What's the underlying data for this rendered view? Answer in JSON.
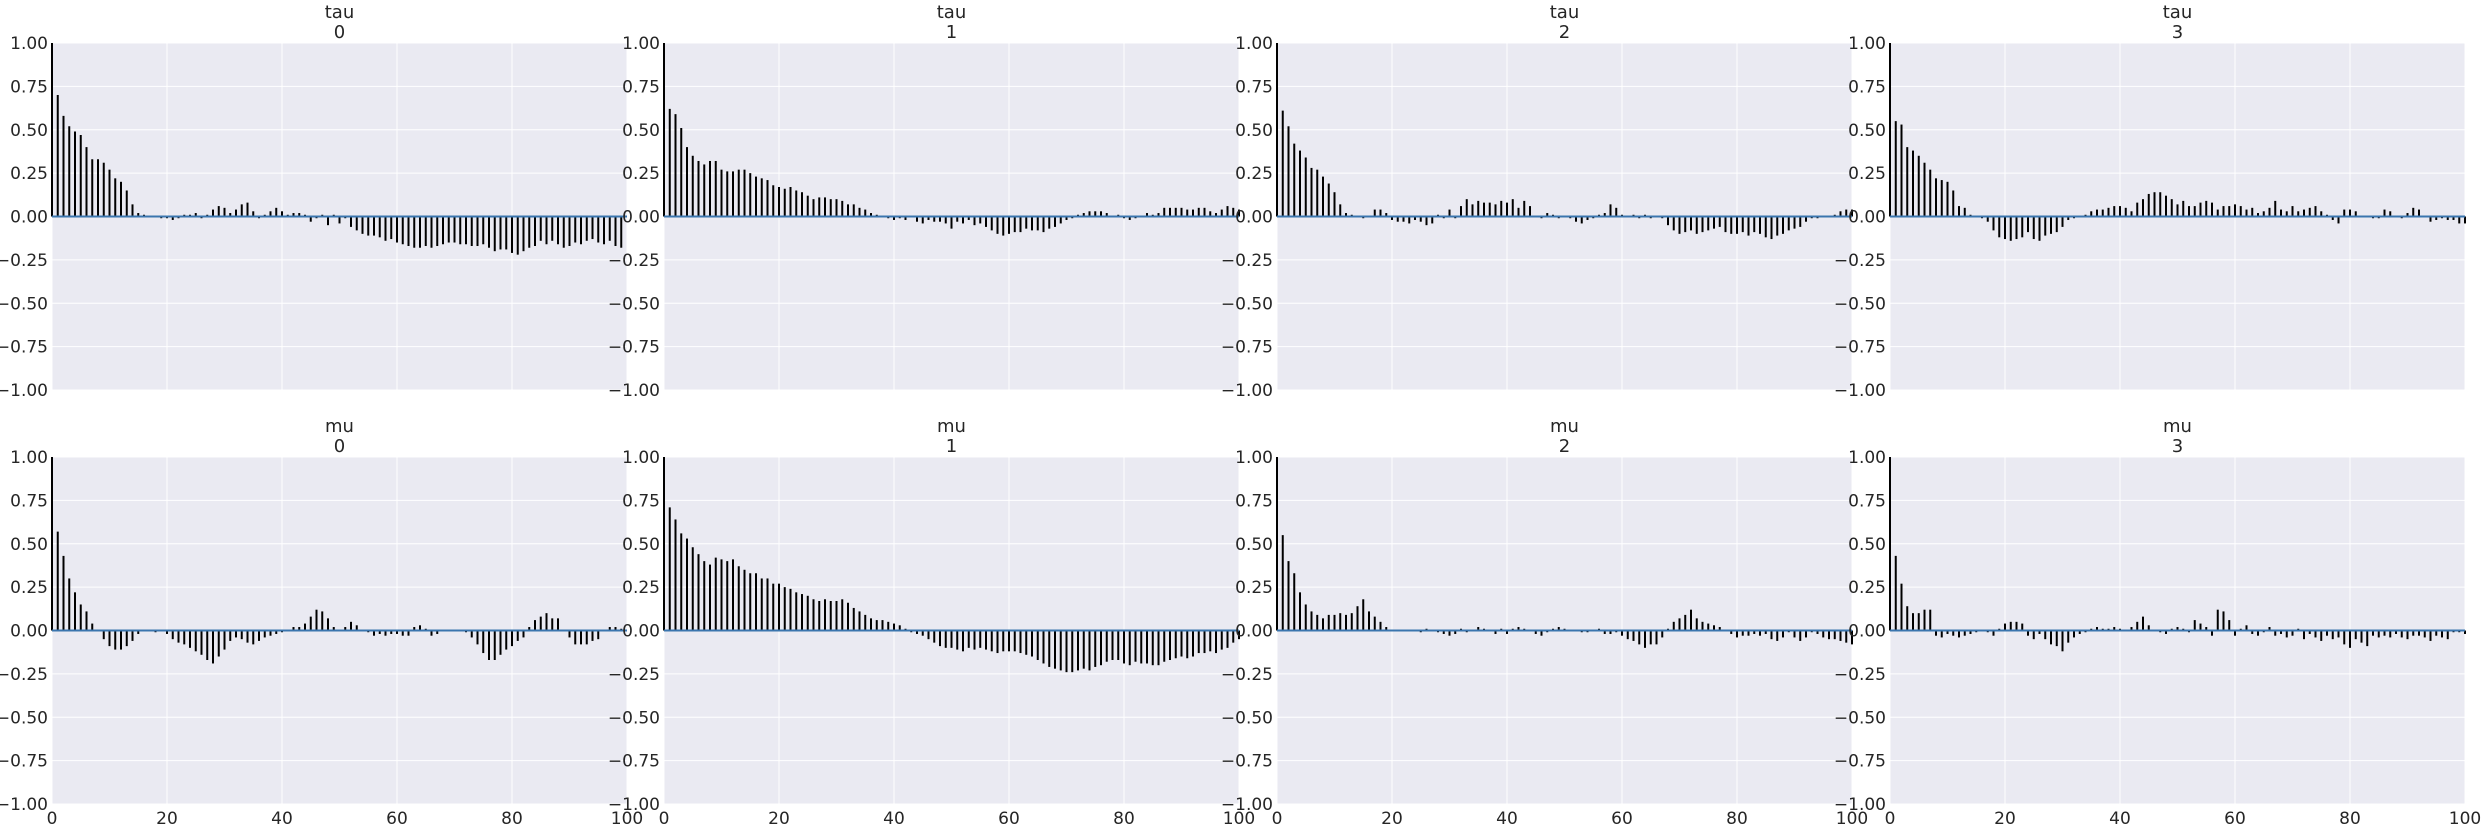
{
  "chart_data": [
    {
      "type": "bar",
      "title": [
        "tau",
        "0"
      ],
      "xlim": [
        0,
        100
      ],
      "ylim": [
        -1,
        1
      ],
      "x_ticks": [
        "0",
        "20",
        "40",
        "60",
        "80",
        "100"
      ],
      "y_ticks": [
        "1.00",
        "0.75",
        "0.50",
        "0.25",
        "0.00",
        "−0.25",
        "−0.50",
        "−0.75",
        "−1.00"
      ],
      "values": [
        1.0,
        0.7,
        0.58,
        0.52,
        0.49,
        0.47,
        0.4,
        0.33,
        0.33,
        0.31,
        0.27,
        0.22,
        0.2,
        0.15,
        0.07,
        0.02,
        0.01,
        0.0,
        0.0,
        -0.01,
        -0.01,
        -0.02,
        -0.01,
        0.01,
        0.01,
        0.02,
        -0.01,
        0.01,
        0.04,
        0.06,
        0.05,
        0.02,
        0.04,
        0.07,
        0.08,
        0.03,
        -0.01,
        0.01,
        0.03,
        0.05,
        0.03,
        0.01,
        0.02,
        0.02,
        0.01,
        -0.03,
        -0.01,
        0.01,
        -0.05,
        0.01,
        -0.04,
        -0.01,
        -0.06,
        -0.08,
        -0.1,
        -0.11,
        -0.11,
        -0.12,
        -0.14,
        -0.13,
        -0.15,
        -0.16,
        -0.17,
        -0.18,
        -0.18,
        -0.17,
        -0.18,
        -0.17,
        -0.16,
        -0.15,
        -0.15,
        -0.16,
        -0.16,
        -0.17,
        -0.17,
        -0.16,
        -0.18,
        -0.2,
        -0.19,
        -0.19,
        -0.21,
        -0.22,
        -0.2,
        -0.18,
        -0.17,
        -0.14,
        -0.16,
        -0.14,
        -0.16,
        -0.18,
        -0.17,
        -0.15,
        -0.16,
        -0.14,
        -0.13,
        -0.15,
        -0.16,
        -0.14,
        -0.17,
        -0.18
      ]
    },
    {
      "type": "bar",
      "title": [
        "tau",
        "1"
      ],
      "xlim": [
        0,
        100
      ],
      "ylim": [
        -1,
        1
      ],
      "x_ticks": [
        "0",
        "20",
        "40",
        "60",
        "80",
        "100"
      ],
      "y_ticks": [
        "1.00",
        "0.75",
        "0.50",
        "0.25",
        "0.00",
        "−0.25",
        "−0.50",
        "−0.75",
        "−1.00"
      ],
      "values": [
        1.0,
        0.62,
        0.59,
        0.51,
        0.4,
        0.35,
        0.32,
        0.3,
        0.32,
        0.32,
        0.27,
        0.26,
        0.26,
        0.27,
        0.27,
        0.25,
        0.23,
        0.22,
        0.21,
        0.18,
        0.17,
        0.16,
        0.17,
        0.15,
        0.14,
        0.12,
        0.1,
        0.11,
        0.11,
        0.1,
        0.1,
        0.09,
        0.07,
        0.07,
        0.05,
        0.04,
        0.02,
        0.01,
        0.0,
        -0.01,
        -0.02,
        -0.01,
        -0.02,
        0.0,
        -0.03,
        -0.04,
        -0.02,
        -0.03,
        -0.03,
        -0.04,
        -0.07,
        -0.03,
        -0.04,
        -0.02,
        -0.05,
        -0.04,
        -0.06,
        -0.08,
        -0.1,
        -0.11,
        -0.1,
        -0.09,
        -0.09,
        -0.07,
        -0.08,
        -0.08,
        -0.09,
        -0.07,
        -0.06,
        -0.04,
        -0.02,
        -0.01,
        0.01,
        0.02,
        0.03,
        0.03,
        0.03,
        0.02,
        0.0,
        0.01,
        -0.01,
        -0.02,
        -0.01,
        0.0,
        0.02,
        0.01,
        0.02,
        0.05,
        0.05,
        0.05,
        0.05,
        0.04,
        0.04,
        0.05,
        0.05,
        0.03,
        0.02,
        0.04,
        0.06,
        0.05,
        0.04
      ]
    },
    {
      "type": "bar",
      "title": [
        "tau",
        "2"
      ],
      "xlim": [
        0,
        100
      ],
      "ylim": [
        -1,
        1
      ],
      "x_ticks": [
        "0",
        "20",
        "40",
        "60",
        "80",
        "100"
      ],
      "y_ticks": [
        "1.00",
        "0.75",
        "0.50",
        "0.25",
        "0.00",
        "−0.25",
        "−0.50",
        "−0.75",
        "−1.00"
      ],
      "values": [
        1.0,
        0.61,
        0.52,
        0.42,
        0.38,
        0.34,
        0.28,
        0.27,
        0.23,
        0.19,
        0.14,
        0.07,
        0.02,
        0.01,
        0.0,
        -0.01,
        0.0,
        0.04,
        0.04,
        0.02,
        -0.02,
        -0.03,
        -0.03,
        -0.04,
        -0.02,
        -0.03,
        -0.05,
        -0.04,
        0.01,
        -0.01,
        0.04,
        -0.01,
        0.06,
        0.1,
        0.07,
        0.09,
        0.08,
        0.08,
        0.07,
        0.09,
        0.08,
        0.1,
        0.05,
        0.09,
        0.06,
        0.0,
        -0.01,
        0.02,
        0.01,
        -0.01,
        0.0,
        -0.01,
        -0.03,
        -0.04,
        -0.02,
        -0.01,
        0.01,
        0.02,
        0.07,
        0.05,
        0.01,
        0.0,
        0.01,
        -0.01,
        0.01,
        -0.01,
        0.0,
        -0.01,
        -0.05,
        -0.08,
        -0.1,
        -0.09,
        -0.08,
        -0.1,
        -0.09,
        -0.08,
        -0.07,
        -0.06,
        -0.09,
        -0.1,
        -0.1,
        -0.09,
        -0.11,
        -0.09,
        -0.1,
        -0.12,
        -0.13,
        -0.11,
        -0.1,
        -0.08,
        -0.07,
        -0.06,
        -0.03,
        -0.01,
        -0.01,
        0.0,
        0.0,
        0.01,
        0.03,
        0.04,
        0.04
      ]
    },
    {
      "type": "bar",
      "title": [
        "tau",
        "3"
      ],
      "xlim": [
        0,
        100
      ],
      "ylim": [
        -1,
        1
      ],
      "x_ticks": [
        "0",
        "20",
        "40",
        "60",
        "80",
        "100"
      ],
      "y_ticks": [
        "1.00",
        "0.75",
        "0.50",
        "0.25",
        "0.00",
        "−0.25",
        "−0.50",
        "−0.75",
        "−1.00"
      ],
      "values": [
        1.0,
        0.55,
        0.53,
        0.4,
        0.38,
        0.35,
        0.31,
        0.27,
        0.22,
        0.21,
        0.2,
        0.15,
        0.06,
        0.05,
        0.01,
        0.0,
        -0.01,
        -0.03,
        -0.08,
        -0.12,
        -0.13,
        -0.14,
        -0.13,
        -0.12,
        -0.09,
        -0.13,
        -0.14,
        -0.11,
        -0.1,
        -0.09,
        -0.06,
        -0.02,
        -0.01,
        0.0,
        0.01,
        0.03,
        0.04,
        0.04,
        0.05,
        0.06,
        0.06,
        0.05,
        0.03,
        0.08,
        0.1,
        0.13,
        0.14,
        0.14,
        0.12,
        0.1,
        0.07,
        0.09,
        0.06,
        0.06,
        0.08,
        0.09,
        0.08,
        0.04,
        0.06,
        0.06,
        0.07,
        0.06,
        0.04,
        0.05,
        0.02,
        0.03,
        0.05,
        0.09,
        0.04,
        0.03,
        0.06,
        0.03,
        0.04,
        0.05,
        0.06,
        0.03,
        0.01,
        -0.02,
        -0.04,
        0.04,
        0.04,
        0.03,
        0.0,
        0.0,
        -0.01,
        -0.01,
        0.04,
        0.03,
        0.0,
        -0.01,
        0.02,
        0.05,
        0.04,
        0.0,
        -0.03,
        -0.02,
        -0.01,
        -0.02,
        -0.02,
        -0.04,
        -0.04
      ]
    },
    {
      "type": "bar",
      "title": [
        "mu",
        "0"
      ],
      "xlim": [
        0,
        100
      ],
      "ylim": [
        -1,
        1
      ],
      "x_ticks": [
        "0",
        "20",
        "40",
        "60",
        "80",
        "100"
      ],
      "y_ticks": [
        "1.00",
        "0.75",
        "0.50",
        "0.25",
        "0.00",
        "−0.25",
        "−0.50",
        "−0.75",
        "−1.00"
      ],
      "values": [
        1.0,
        0.57,
        0.43,
        0.3,
        0.22,
        0.15,
        0.11,
        0.04,
        0.0,
        -0.05,
        -0.09,
        -0.11,
        -0.11,
        -0.09,
        -0.06,
        -0.02,
        0.0,
        0.0,
        -0.01,
        0.0,
        -0.02,
        -0.05,
        -0.07,
        -0.08,
        -0.1,
        -0.12,
        -0.14,
        -0.17,
        -0.19,
        -0.15,
        -0.11,
        -0.06,
        -0.04,
        -0.05,
        -0.07,
        -0.08,
        -0.06,
        -0.04,
        -0.03,
        -0.02,
        -0.01,
        0.0,
        0.02,
        0.02,
        0.04,
        0.08,
        0.12,
        0.11,
        0.07,
        0.02,
        0.0,
        0.02,
        0.05,
        0.03,
        0.0,
        -0.01,
        -0.03,
        -0.02,
        -0.03,
        -0.02,
        -0.02,
        -0.03,
        -0.03,
        0.02,
        0.03,
        0.01,
        -0.03,
        -0.02,
        0.0,
        0.0,
        0.0,
        0.0,
        -0.01,
        -0.04,
        -0.08,
        -0.13,
        -0.17,
        -0.17,
        -0.14,
        -0.11,
        -0.09,
        -0.06,
        -0.04,
        0.02,
        0.06,
        0.08,
        0.1,
        0.07,
        0.07,
        0.0,
        -0.04,
        -0.08,
        -0.08,
        -0.08,
        -0.06,
        -0.05,
        0.0,
        0.02,
        0.02,
        0.01,
        0.0
      ]
    },
    {
      "type": "bar",
      "title": [
        "mu",
        "1"
      ],
      "xlim": [
        0,
        100
      ],
      "ylim": [
        -1,
        1
      ],
      "x_ticks": [
        "0",
        "20",
        "40",
        "60",
        "80",
        "100"
      ],
      "y_ticks": [
        "1.00",
        "0.75",
        "0.50",
        "0.25",
        "0.00",
        "−0.25",
        "−0.50",
        "−0.75",
        "−1.00"
      ],
      "values": [
        1.0,
        0.71,
        0.64,
        0.56,
        0.53,
        0.48,
        0.44,
        0.4,
        0.38,
        0.42,
        0.41,
        0.4,
        0.41,
        0.37,
        0.35,
        0.33,
        0.33,
        0.3,
        0.3,
        0.27,
        0.27,
        0.25,
        0.24,
        0.22,
        0.21,
        0.2,
        0.18,
        0.17,
        0.18,
        0.17,
        0.17,
        0.18,
        0.16,
        0.13,
        0.11,
        0.09,
        0.07,
        0.06,
        0.06,
        0.05,
        0.04,
        0.03,
        0.01,
        -0.01,
        -0.02,
        -0.03,
        -0.05,
        -0.07,
        -0.09,
        -0.1,
        -0.1,
        -0.11,
        -0.12,
        -0.1,
        -0.11,
        -0.1,
        -0.11,
        -0.12,
        -0.13,
        -0.12,
        -0.12,
        -0.12,
        -0.13,
        -0.14,
        -0.15,
        -0.17,
        -0.19,
        -0.21,
        -0.22,
        -0.23,
        -0.24,
        -0.24,
        -0.23,
        -0.22,
        -0.23,
        -0.21,
        -0.2,
        -0.18,
        -0.17,
        -0.17,
        -0.19,
        -0.2,
        -0.18,
        -0.19,
        -0.19,
        -0.2,
        -0.2,
        -0.18,
        -0.17,
        -0.16,
        -0.15,
        -0.16,
        -0.15,
        -0.13,
        -0.13,
        -0.12,
        -0.13,
        -0.11,
        -0.1,
        -0.07,
        -0.05
      ]
    },
    {
      "type": "bar",
      "title": [
        "mu",
        "2"
      ],
      "xlim": [
        0,
        100
      ],
      "ylim": [
        -1,
        1
      ],
      "x_ticks": [
        "0",
        "20",
        "40",
        "60",
        "80",
        "100"
      ],
      "y_ticks": [
        "1.00",
        "0.75",
        "0.50",
        "0.25",
        "0.00",
        "−0.25",
        "−0.50",
        "−0.75",
        "−1.00"
      ],
      "values": [
        1.0,
        0.55,
        0.4,
        0.33,
        0.22,
        0.15,
        0.11,
        0.09,
        0.07,
        0.09,
        0.09,
        0.1,
        0.09,
        0.1,
        0.14,
        0.18,
        0.11,
        0.08,
        0.05,
        0.02,
        0.0,
        0.0,
        0.0,
        0.0,
        0.0,
        -0.01,
        0.01,
        0.0,
        -0.01,
        -0.02,
        -0.03,
        -0.02,
        0.01,
        -0.01,
        0.0,
        0.02,
        0.01,
        0.0,
        -0.02,
        0.01,
        -0.02,
        0.01,
        0.02,
        0.01,
        0.0,
        -0.02,
        -0.03,
        -0.01,
        0.01,
        0.02,
        0.01,
        0.0,
        0.0,
        -0.01,
        -0.01,
        0.0,
        0.01,
        -0.02,
        -0.02,
        -0.01,
        -0.03,
        -0.05,
        -0.06,
        -0.08,
        -0.1,
        -0.08,
        -0.08,
        -0.04,
        0.01,
        0.05,
        0.07,
        0.09,
        0.12,
        0.07,
        0.05,
        0.04,
        0.03,
        0.02,
        0.0,
        -0.02,
        -0.04,
        -0.03,
        -0.03,
        -0.02,
        -0.03,
        -0.02,
        -0.05,
        -0.06,
        -0.04,
        -0.01,
        -0.04,
        -0.06,
        -0.04,
        -0.01,
        -0.02,
        -0.04,
        -0.05,
        -0.05,
        -0.06,
        -0.07,
        -0.08
      ]
    },
    {
      "type": "bar",
      "title": [
        "mu",
        "3"
      ],
      "xlim": [
        0,
        100
      ],
      "ylim": [
        -1,
        1
      ],
      "x_ticks": [
        "0",
        "20",
        "40",
        "60",
        "80",
        "100"
      ],
      "y_ticks": [
        "1.00",
        "0.75",
        "0.50",
        "0.25",
        "0.00",
        "−0.25",
        "−0.50",
        "−0.75",
        "−1.00"
      ],
      "values": [
        1.0,
        0.43,
        0.27,
        0.14,
        0.1,
        0.1,
        0.12,
        0.12,
        -0.03,
        -0.04,
        -0.02,
        -0.03,
        -0.04,
        -0.03,
        -0.02,
        -0.01,
        0.0,
        -0.01,
        -0.03,
        0.01,
        0.04,
        0.05,
        0.05,
        0.04,
        -0.03,
        -0.05,
        -0.02,
        -0.05,
        -0.08,
        -0.09,
        -0.12,
        -0.07,
        -0.04,
        -0.02,
        -0.01,
        0.01,
        0.02,
        0.01,
        0.01,
        0.02,
        0.01,
        0.0,
        0.02,
        0.05,
        0.08,
        0.03,
        0.0,
        -0.01,
        -0.02,
        0.01,
        0.02,
        0.01,
        -0.01,
        0.06,
        0.04,
        0.02,
        -0.03,
        0.12,
        0.11,
        0.06,
        -0.03,
        0.01,
        0.03,
        -0.02,
        -0.03,
        -0.01,
        0.02,
        -0.03,
        -0.02,
        -0.04,
        -0.03,
        0.01,
        -0.05,
        -0.02,
        -0.04,
        -0.06,
        -0.03,
        -0.05,
        -0.04,
        -0.08,
        -0.1,
        -0.05,
        -0.07,
        -0.09,
        -0.03,
        -0.04,
        -0.03,
        -0.04,
        -0.02,
        -0.04,
        -0.05,
        -0.03,
        -0.03,
        -0.04,
        -0.06,
        -0.03,
        -0.04,
        -0.05,
        -0.01,
        -0.01,
        -0.02
      ]
    }
  ],
  "colors": {
    "panel_bg": "#eaeaf2",
    "grid": "#ffffff",
    "bar": "#000000",
    "zero_line": "#3a75ae"
  }
}
